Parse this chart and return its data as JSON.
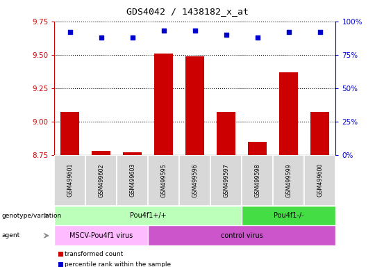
{
  "title": "GDS4042 / 1438182_x_at",
  "samples": [
    "GSM499601",
    "GSM499602",
    "GSM499603",
    "GSM499595",
    "GSM499596",
    "GSM499597",
    "GSM499598",
    "GSM499599",
    "GSM499600"
  ],
  "transformed_count": [
    9.07,
    8.78,
    8.77,
    9.51,
    9.49,
    9.07,
    8.85,
    9.37,
    9.07
  ],
  "percentile_rank": [
    92,
    88,
    88,
    93,
    93,
    90,
    88,
    92,
    92
  ],
  "ylim_left": [
    8.75,
    9.75
  ],
  "ylim_right": [
    0,
    100
  ],
  "yticks_left": [
    8.75,
    9.0,
    9.25,
    9.5,
    9.75
  ],
  "yticks_right": [
    0,
    25,
    50,
    75,
    100
  ],
  "bar_color": "#cc0000",
  "dot_color": "#0000cc",
  "genotype_groups": [
    {
      "label": "Pou4f1+/+",
      "start": 0,
      "end": 6,
      "color": "#bbffbb"
    },
    {
      "label": "Pou4f1-/-",
      "start": 6,
      "end": 9,
      "color": "#44dd44"
    }
  ],
  "agent_groups": [
    {
      "label": "MSCV-Pou4f1 virus",
      "start": 0,
      "end": 3,
      "color": "#ffbbff"
    },
    {
      "label": "control virus",
      "start": 3,
      "end": 9,
      "color": "#cc55cc"
    }
  ],
  "legend_items": [
    {
      "color": "#cc0000",
      "label": "transformed count"
    },
    {
      "color": "#0000cc",
      "label": "percentile rank within the sample"
    }
  ],
  "tick_label_color_left": "#cc0000",
  "tick_label_color_right": "#0000cc",
  "row_label_genotype": "genotype/variation",
  "row_label_agent": "agent",
  "sample_box_color": "#d8d8d8",
  "bar_width": 0.6
}
